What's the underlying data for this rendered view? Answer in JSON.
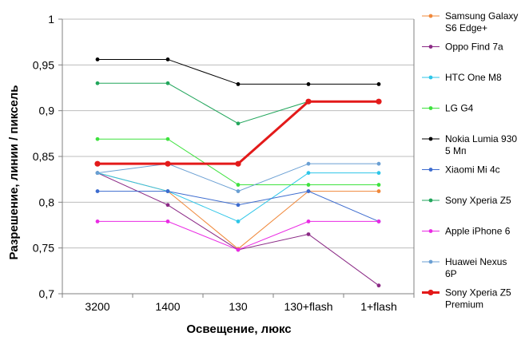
{
  "chart_data": {
    "type": "line",
    "title": "",
    "xlabel": "Освещение,  люкс",
    "ylabel": "Разрешение,  линии / пиксель",
    "categories": [
      "3200",
      "1400",
      "130",
      "130+flash",
      "1+flash"
    ],
    "ylim": [
      0.7,
      1.0
    ],
    "yticks": [
      "0,7",
      "0,75",
      "0,8",
      "0,85",
      "0,9",
      "0,95",
      "1"
    ],
    "ytick_values": [
      0.7,
      0.75,
      0.8,
      0.85,
      0.9,
      0.95,
      1.0
    ],
    "grid": "horizontal",
    "legend_position": "right",
    "series": [
      {
        "name": [
          "Samsung Galaxy",
          "S6 Edge+"
        ],
        "color": "#f0883a",
        "values": [
          0.832,
          0.812,
          0.749,
          0.812,
          0.812
        ]
      },
      {
        "name": [
          "Oppo Find 7a"
        ],
        "color": "#8b2a86",
        "values": [
          0.832,
          0.797,
          0.748,
          0.765,
          0.709
        ]
      },
      {
        "name": [
          "HTC One M8"
        ],
        "color": "#2ec6e8",
        "values": [
          0.832,
          0.812,
          0.779,
          0.832,
          0.832
        ]
      },
      {
        "name": [
          "LG G4"
        ],
        "color": "#3ee23e",
        "values": [
          0.869,
          0.869,
          0.819,
          0.819,
          0.819
        ]
      },
      {
        "name": [
          "Nokia Lumia 930",
          "5 Мп"
        ],
        "color": "#000000",
        "values": [
          0.956,
          0.956,
          0.929,
          0.929,
          0.929
        ]
      },
      {
        "name": [
          "Xiaomi Mi 4c"
        ],
        "color": "#3d6ccf",
        "values": [
          0.812,
          0.812,
          0.797,
          0.812,
          0.779
        ]
      },
      {
        "name": [
          "Sony Xperia Z5"
        ],
        "color": "#22a65c",
        "values": [
          0.93,
          0.93,
          0.886,
          0.91,
          0.91
        ]
      },
      {
        "name": [
          "Apple iPhone 6"
        ],
        "color": "#ea2ae4",
        "values": [
          0.779,
          0.779,
          0.748,
          0.779,
          0.779
        ]
      },
      {
        "name": [
          "Huawei Nexus",
          "6P"
        ],
        "color": "#6a9fd3",
        "values": [
          0.832,
          0.842,
          0.812,
          0.842,
          0.842
        ]
      },
      {
        "name": [
          "Sony Xperia Z5",
          "Premium"
        ],
        "color": "#e31a1a",
        "values": [
          0.842,
          0.842,
          0.842,
          0.91,
          0.91
        ],
        "bold": true
      }
    ]
  }
}
